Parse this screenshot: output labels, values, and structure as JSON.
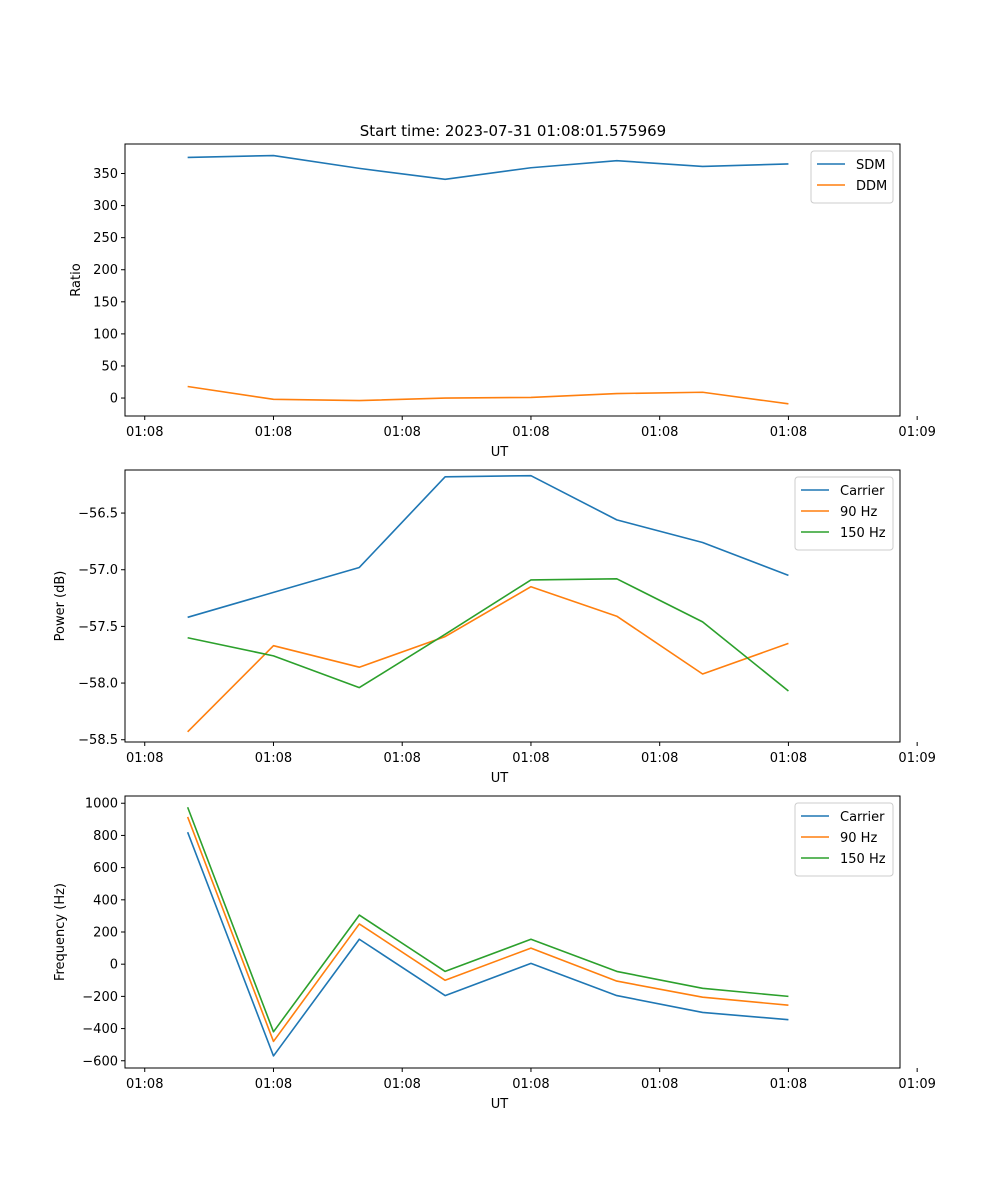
{
  "figure_title": "Start time: 2023-07-31 01:08:01.575969",
  "colors": {
    "c0": "#1f77b4",
    "c1": "#ff7f0e",
    "c2": "#2ca02c"
  },
  "chart_data": [
    {
      "type": "line",
      "title": "Start time: 2023-07-31 01:08:01.575969",
      "xlabel": "UT",
      "ylabel": "Ratio",
      "xlim": [
        -0.73,
        8.3
      ],
      "ylim": [
        -28,
        396
      ],
      "x": [
        0,
        1,
        2,
        3,
        4,
        5,
        6,
        7
      ],
      "xticks": [
        -0.5,
        1,
        2.5,
        4,
        5.5,
        7,
        8.5
      ],
      "xtick_labels": [
        "01:08",
        "01:08",
        "01:08",
        "01:08",
        "01:08",
        "01:08",
        "01:09"
      ],
      "yticks": [
        0,
        50,
        100,
        150,
        200,
        250,
        300,
        350
      ],
      "ytick_labels": [
        "0",
        "50",
        "100",
        "150",
        "200",
        "250",
        "300",
        "350"
      ],
      "legend_position": "top-right",
      "series": [
        {
          "name": "SDM",
          "color": "#1f77b4",
          "values": [
            375,
            378,
            358,
            341,
            359,
            370,
            361,
            365
          ]
        },
        {
          "name": "DDM",
          "color": "#ff7f0e",
          "values": [
            18,
            -2,
            -4,
            0,
            1,
            7,
            9,
            -9
          ]
        }
      ]
    },
    {
      "type": "line",
      "title": "",
      "xlabel": "UT",
      "ylabel": "Power (dB)",
      "xlim": [
        -0.73,
        8.3
      ],
      "ylim": [
        -58.52,
        -56.12
      ],
      "x": [
        0,
        1,
        2,
        3,
        4,
        5,
        6,
        7
      ],
      "xticks": [
        -0.5,
        1,
        2.5,
        4,
        5.5,
        7,
        8.5
      ],
      "xtick_labels": [
        "01:08",
        "01:08",
        "01:08",
        "01:08",
        "01:08",
        "01:08",
        "01:09"
      ],
      "yticks": [
        -58.5,
        -58.0,
        -57.5,
        -57.0,
        -56.5
      ],
      "ytick_labels": [
        "−58.5",
        "−58.0",
        "−57.5",
        "−57.0",
        "−56.5"
      ],
      "legend_position": "top-right",
      "series": [
        {
          "name": "Carrier",
          "color": "#1f77b4",
          "values": [
            -57.42,
            -57.2,
            -56.98,
            -56.18,
            -56.17,
            -56.56,
            -56.76,
            -57.05
          ]
        },
        {
          "name": "90 Hz",
          "color": "#ff7f0e",
          "values": [
            -58.43,
            -57.67,
            -57.86,
            -57.59,
            -57.15,
            -57.41,
            -57.92,
            -57.65
          ]
        },
        {
          "name": "150 Hz",
          "color": "#2ca02c",
          "values": [
            -57.6,
            -57.76,
            -58.04,
            -57.57,
            -57.09,
            -57.08,
            -57.46,
            -58.07
          ]
        }
      ]
    },
    {
      "type": "line",
      "title": "",
      "xlabel": "UT",
      "ylabel": "Frequency (Hz)",
      "xlim": [
        -0.73,
        8.3
      ],
      "ylim": [
        -645,
        1045
      ],
      "x": [
        0,
        1,
        2,
        3,
        4,
        5,
        6,
        7
      ],
      "xticks": [
        -0.5,
        1,
        2.5,
        4,
        5.5,
        7,
        8.5
      ],
      "xtick_labels": [
        "01:08",
        "01:08",
        "01:08",
        "01:08",
        "01:08",
        "01:08",
        "01:09"
      ],
      "yticks": [
        -600,
        -400,
        -200,
        0,
        200,
        400,
        600,
        800,
        1000
      ],
      "ytick_labels": [
        "−600",
        "−400",
        "−200",
        "0",
        "200",
        "400",
        "600",
        "800",
        "1000"
      ],
      "legend_position": "top-right",
      "series": [
        {
          "name": "Carrier",
          "color": "#1f77b4",
          "values": [
            820,
            -570,
            155,
            -195,
            5,
            -195,
            -300,
            -345
          ]
        },
        {
          "name": "90 Hz",
          "color": "#ff7f0e",
          "values": [
            915,
            -480,
            250,
            -100,
            100,
            -105,
            -205,
            -255
          ]
        },
        {
          "name": "150 Hz",
          "color": "#2ca02c",
          "values": [
            975,
            -420,
            305,
            -45,
            155,
            -45,
            -150,
            -200
          ]
        }
      ]
    }
  ]
}
